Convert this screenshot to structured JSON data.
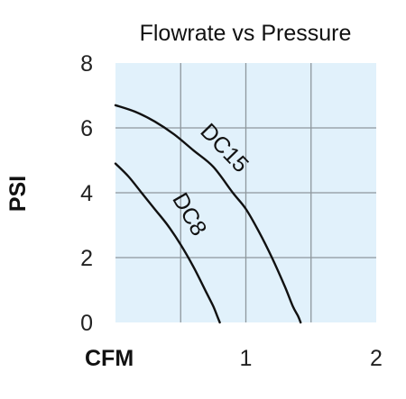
{
  "chart_data": {
    "type": "line",
    "title": "Flowrate vs Pressure",
    "xlabel": "CFM",
    "ylabel": "PSI",
    "xlim": [
      0,
      2
    ],
    "ylim": [
      0,
      8
    ],
    "x_ticks": [
      1,
      2
    ],
    "x_tick_labels": [
      "1",
      "2"
    ],
    "y_ticks": [
      0,
      2,
      4,
      6,
      8
    ],
    "y_tick_labels": [
      "0",
      "2",
      "4",
      "6",
      "8"
    ],
    "grid": true,
    "background_color": "#e1f1fb",
    "grid_color": "#8e979d",
    "line_color": "#111111",
    "series": [
      {
        "name": "DC15",
        "x": [
          0,
          0.15,
          0.3,
          0.45,
          0.6,
          0.75,
          0.9,
          1.0,
          1.1,
          1.2,
          1.3,
          1.36,
          1.4,
          1.42
        ],
        "y": [
          6.7,
          6.5,
          6.2,
          5.8,
          5.3,
          4.8,
          4.0,
          3.5,
          2.8,
          2.0,
          1.1,
          0.5,
          0.2,
          0
        ]
      },
      {
        "name": "DC8",
        "x": [
          0,
          0.1,
          0.2,
          0.3,
          0.4,
          0.5,
          0.6,
          0.7,
          0.75,
          0.78,
          0.8
        ],
        "y": [
          4.9,
          4.5,
          4.0,
          3.5,
          3.0,
          2.4,
          1.7,
          0.9,
          0.5,
          0.2,
          0
        ]
      }
    ]
  }
}
